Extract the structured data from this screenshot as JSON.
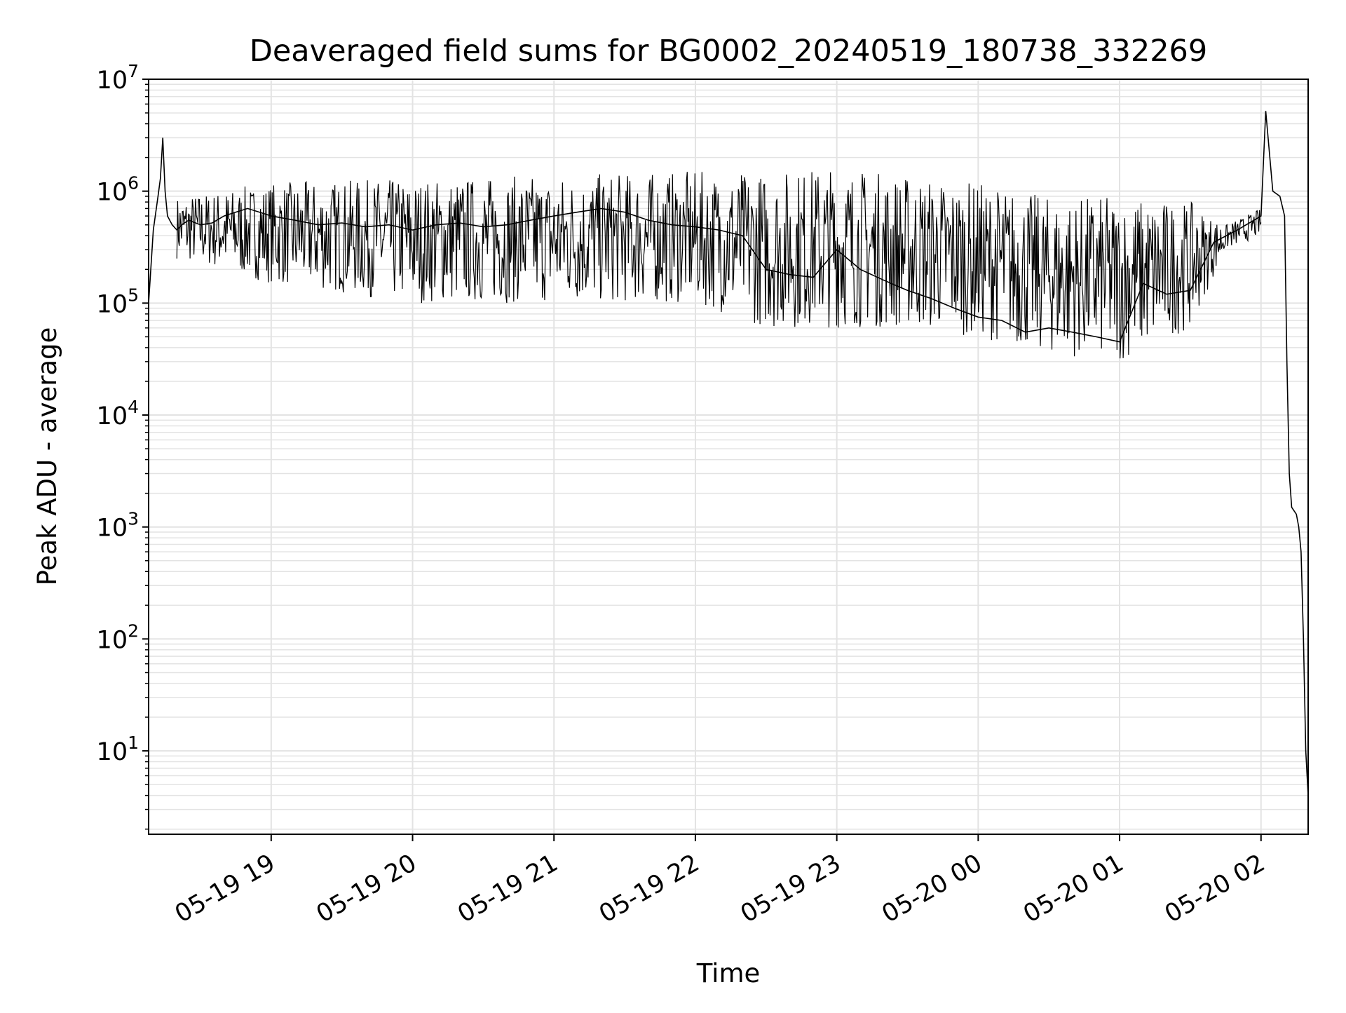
{
  "chart_data": {
    "type": "line",
    "title": "Deaveraged field sums for BG0002_20240519_180738_332269",
    "xlabel": "Time",
    "ylabel": "Peak ADU - average",
    "yscale": "log",
    "ylim": [
      1.8,
      10000000
    ],
    "xlim": [
      "2024-05-19 18:08",
      "2024-05-20 02:20"
    ],
    "grid": true,
    "legend": "none",
    "x_ticks": [
      {
        "value": "2024-05-19 19:00",
        "label": "05-19 19"
      },
      {
        "value": "2024-05-19 20:00",
        "label": "05-19 20"
      },
      {
        "value": "2024-05-19 21:00",
        "label": "05-19 21"
      },
      {
        "value": "2024-05-19 22:00",
        "label": "05-19 22"
      },
      {
        "value": "2024-05-19 23:00",
        "label": "05-19 23"
      },
      {
        "value": "2024-05-20 00:00",
        "label": "05-20 00"
      },
      {
        "value": "2024-05-20 01:00",
        "label": "05-20 01"
      },
      {
        "value": "2024-05-20 02:00",
        "label": "05-20 02"
      }
    ],
    "y_ticks": [
      {
        "value": 10,
        "base": "10",
        "exp": "1"
      },
      {
        "value": 100,
        "base": "10",
        "exp": "2"
      },
      {
        "value": 1000,
        "base": "10",
        "exp": "3"
      },
      {
        "value": 10000,
        "base": "10",
        "exp": "4"
      },
      {
        "value": 100000,
        "base": "10",
        "exp": "5"
      },
      {
        "value": 1000000,
        "base": "10",
        "exp": "6"
      },
      {
        "value": 10000000,
        "base": "10",
        "exp": "7"
      }
    ],
    "line_color": "#000000",
    "series": [
      {
        "x": [
          "2024-05-19 18:08",
          "2024-05-19 18:10",
          "2024-05-19 18:12",
          "2024-05-19 18:13",
          "2024-05-19 18:14",
          "2024-05-19 18:15",
          "2024-05-19 18:16",
          "2024-05-19 18:18",
          "2024-05-19 18:20",
          "2024-05-19 18:22",
          "2024-05-19 18:25",
          "2024-05-19 18:30",
          "2024-05-19 18:35",
          "2024-05-19 18:40",
          "2024-05-19 18:45",
          "2024-05-19 18:50",
          "2024-05-19 18:55",
          "2024-05-19 19:00",
          "2024-05-19 19:10",
          "2024-05-19 19:20",
          "2024-05-19 19:30",
          "2024-05-19 19:40",
          "2024-05-19 19:50",
          "2024-05-19 20:00",
          "2024-05-19 20:10",
          "2024-05-19 20:20",
          "2024-05-19 20:30",
          "2024-05-19 20:40",
          "2024-05-19 20:50",
          "2024-05-19 21:00",
          "2024-05-19 21:10",
          "2024-05-19 21:20",
          "2024-05-19 21:30",
          "2024-05-19 21:40",
          "2024-05-19 21:50",
          "2024-05-19 22:00",
          "2024-05-19 22:10",
          "2024-05-19 22:20",
          "2024-05-19 22:30",
          "2024-05-19 22:40",
          "2024-05-19 22:50",
          "2024-05-19 23:00",
          "2024-05-19 23:10",
          "2024-05-19 23:20",
          "2024-05-19 23:30",
          "2024-05-19 23:40",
          "2024-05-19 23:50",
          "2024-05-20 00:00",
          "2024-05-20 00:10",
          "2024-05-20 00:20",
          "2024-05-20 00:30",
          "2024-05-20 00:40",
          "2024-05-20 00:50",
          "2024-05-20 01:00",
          "2024-05-20 01:10",
          "2024-05-20 01:20",
          "2024-05-20 01:30",
          "2024-05-20 01:40",
          "2024-05-20 01:50",
          "2024-05-20 02:00",
          "2024-05-20 02:02",
          "2024-05-20 02:05",
          "2024-05-20 02:08",
          "2024-05-20 02:10",
          "2024-05-20 02:11",
          "2024-05-20 02:12",
          "2024-05-20 02:13",
          "2024-05-20 02:15",
          "2024-05-20 02:16",
          "2024-05-20 02:17",
          "2024-05-20 02:18",
          "2024-05-20 02:19",
          "2024-05-20 02:20"
        ],
        "y": [
          100000,
          450000,
          900000,
          1300000,
          3000000,
          1000000,
          600000,
          500000,
          450000,
          500000,
          550000,
          500000,
          520000,
          600000,
          650000,
          700000,
          650000,
          600000,
          550000,
          500000,
          520000,
          480000,
          500000,
          450000,
          500000,
          520000,
          480000,
          500000,
          550000,
          600000,
          650000,
          700000,
          650000,
          550000,
          500000,
          480000,
          450000,
          400000,
          200000,
          180000,
          170000,
          300000,
          200000,
          160000,
          130000,
          110000,
          90000,
          75000,
          70000,
          55000,
          60000,
          55000,
          50000,
          45000,
          150000,
          120000,
          130000,
          350000,
          450000,
          600000,
          5200000,
          1000000,
          900000,
          600000,
          30000,
          3000,
          1500,
          1300,
          1000,
          600,
          100,
          10,
          4
        ]
      }
    ],
    "band": {
      "x": [
        "2024-05-19 18:20",
        "2024-05-19 19:00",
        "2024-05-19 20:00",
        "2024-05-19 21:00",
        "2024-05-19 22:00",
        "2024-05-19 22:30",
        "2024-05-19 23:00",
        "2024-05-19 23:30",
        "2024-05-20 00:00",
        "2024-05-20 00:30",
        "2024-05-20 01:00",
        "2024-05-20 01:30",
        "2024-05-20 01:45",
        "2024-05-20 02:00"
      ],
      "low": [
        250000,
        150000,
        100000,
        100000,
        100000,
        60000,
        60000,
        60000,
        50000,
        35000,
        30000,
        60000,
        300000,
        400000
      ],
      "high": [
        900000,
        1200000,
        1300000,
        1400000,
        1500000,
        1500000,
        1700000,
        1400000,
        1200000,
        900000,
        900000,
        800000,
        500000,
        700000
      ]
    }
  }
}
